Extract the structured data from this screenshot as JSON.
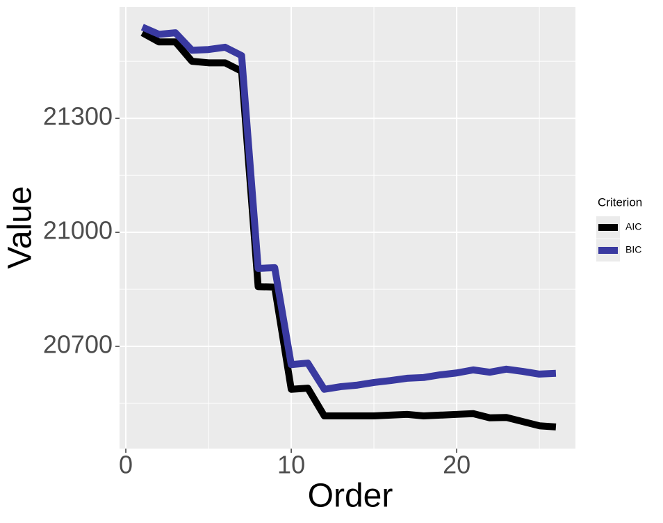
{
  "chart_data": {
    "type": "line",
    "xlabel": "Order",
    "ylabel": "Value",
    "x": [
      1,
      2,
      3,
      4,
      5,
      6,
      7,
      8,
      9,
      10,
      11,
      12,
      13,
      14,
      15,
      16,
      17,
      18,
      19,
      20,
      21,
      22,
      23,
      24,
      25,
      26
    ],
    "series": [
      {
        "name": "AIC",
        "color": "#000000",
        "values": [
          21525,
          21501,
          21501,
          21450,
          21446,
          21446,
          21424,
          20857,
          20856,
          20587,
          20590,
          20517,
          20517,
          20517,
          20517,
          20519,
          20521,
          20517,
          20519,
          20521,
          20523,
          20512,
          20513,
          20502,
          20491,
          20488
        ]
      },
      {
        "name": "BIC",
        "color": "#3939a0",
        "values": [
          21540,
          21521,
          21525,
          21479,
          21481,
          21487,
          21465,
          20905,
          20907,
          20652,
          20656,
          20587,
          20594,
          20598,
          20605,
          20610,
          20616,
          20618,
          20625,
          20630,
          20638,
          20632,
          20640,
          20634,
          20627,
          20629
        ]
      }
    ],
    "legend_title": "Criterion",
    "legend_position": "right",
    "xlim": [
      -0.38,
      27.18
    ],
    "xticks": [
      0,
      10,
      20
    ],
    "xminor": [
      5,
      15,
      25
    ],
    "ylim": [
      20431,
      21593
    ],
    "yticks": [
      20700,
      21000,
      21300
    ],
    "yminor": [
      20550,
      20850,
      21150,
      21450
    ],
    "grid": true
  }
}
